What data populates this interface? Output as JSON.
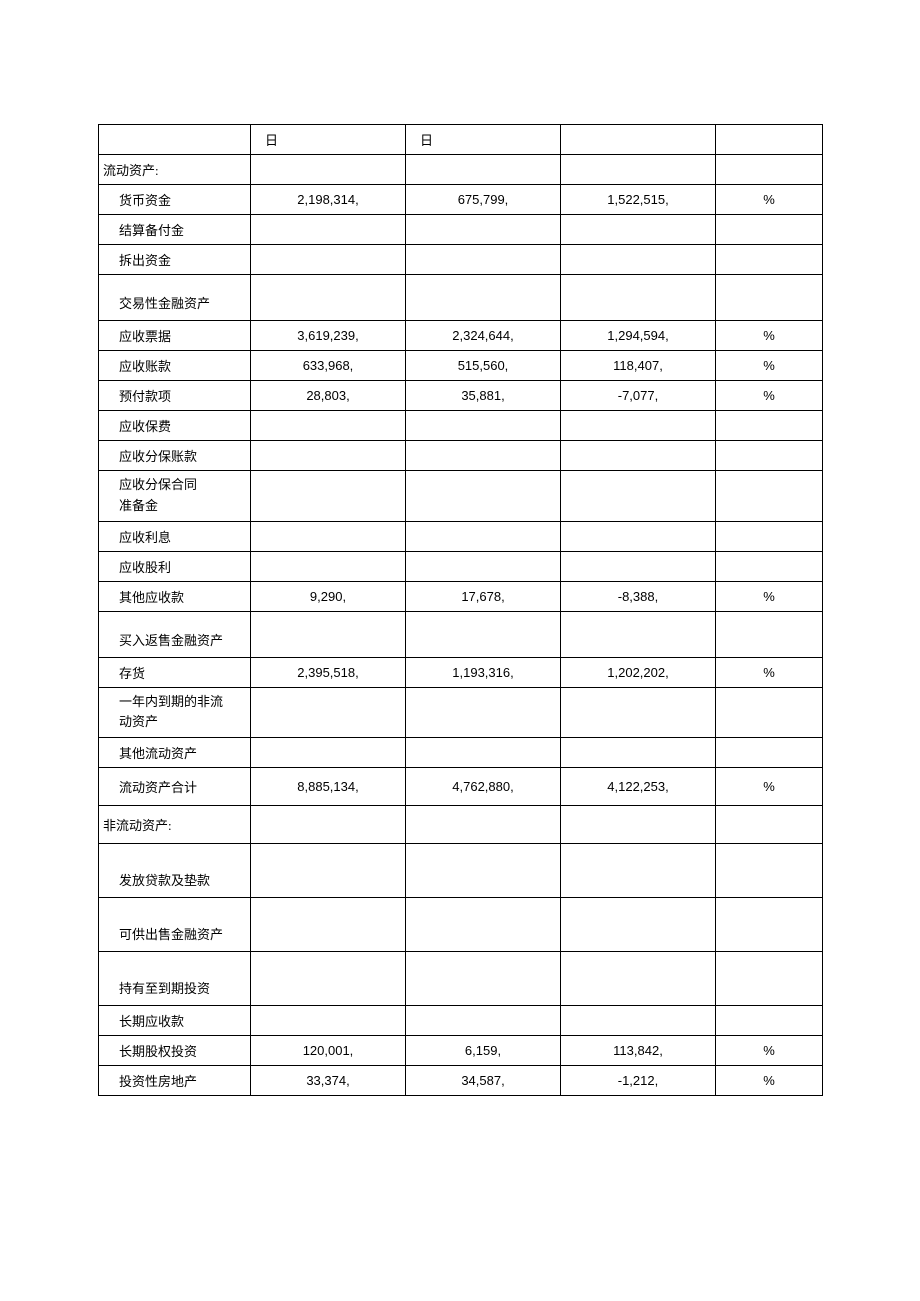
{
  "hdr": {
    "c2": "日",
    "c3": "日"
  },
  "rows": [
    {
      "label": "流动资产:",
      "indent": 0
    },
    {
      "label": "货币资金",
      "indent": 1,
      "v1": "2,198,314,",
      "v2": "675,799,",
      "v3": "1,522,515,",
      "v4": "%"
    },
    {
      "label": "结算备付金",
      "indent": 1
    },
    {
      "label": "拆出资金",
      "indent": 1
    },
    {
      "label": "交易性金融资产",
      "indent": 1,
      "tall": true
    },
    {
      "label": "应收票据",
      "indent": 1,
      "v1": "3,619,239,",
      "v2": "2,324,644,",
      "v3": "1,294,594,",
      "v4": "%"
    },
    {
      "label": "应收账款",
      "indent": 1,
      "v1": "633,968,",
      "v2": "515,560,",
      "v3": "118,407,",
      "v4": "%"
    },
    {
      "label": "预付款项",
      "indent": 1,
      "v1": "28,803,",
      "v2": "35,881,",
      "v3": "-7,077,",
      "v4": "%"
    },
    {
      "label": "应收保费",
      "indent": 1
    },
    {
      "label": "应收分保账款",
      "indent": 1
    },
    {
      "label": "应收分保合同\n准备金",
      "indent": 1,
      "twoline": true
    },
    {
      "label": "应收利息",
      "indent": 1
    },
    {
      "label": "应收股利",
      "indent": 1
    },
    {
      "label": "其他应收款",
      "indent": 1,
      "v1": "9,290,",
      "v2": "17,678,",
      "v3": "-8,388,",
      "v4": "%"
    },
    {
      "label": "买入返售金融资产",
      "indent": 1,
      "tall": true
    },
    {
      "label": "存货",
      "indent": 1,
      "v1": "2,395,518,",
      "v2": "1,193,316,",
      "v3": "1,202,202,",
      "v4": "%"
    },
    {
      "label": "一年内到期的非流\n动资产",
      "indent": 1,
      "twoline": true
    },
    {
      "label": "其他流动资产",
      "indent": 1
    },
    {
      "label": "流动资产合计",
      "indent": 1,
      "v1": "8,885,134,",
      "v2": "4,762,880,",
      "v3": "4,122,253,",
      "v4": "%",
      "hgap": true
    },
    {
      "label": "非流动资产:",
      "indent": 0,
      "hgap": true
    },
    {
      "label": "发放贷款及垫款",
      "indent": 1,
      "tall2": true
    },
    {
      "label": "可供出售金融资产",
      "indent": 1,
      "tall2": true
    },
    {
      "label": "持有至到期投资",
      "indent": 1,
      "tall2": true
    },
    {
      "label": "长期应收款",
      "indent": 1
    },
    {
      "label": "长期股权投资",
      "indent": 1,
      "v1": "120,001,",
      "v2": "6,159,",
      "v3": "113,842,",
      "v4": "%"
    },
    {
      "label": "投资性房地产",
      "indent": 1,
      "v1": "33,374,",
      "v2": "34,587,",
      "v3": "-1,212,",
      "v4": "%"
    }
  ]
}
